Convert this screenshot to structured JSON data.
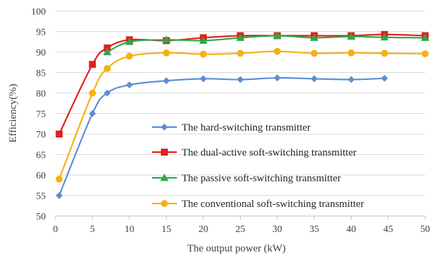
{
  "chart_data": {
    "type": "line",
    "xlabel": "The output power (kW)",
    "ylabel": "Efficiency(%)",
    "xlim": [
      0,
      50
    ],
    "ylim": [
      50,
      100
    ],
    "xticks": [
      "0",
      "5",
      "10",
      "15",
      "20",
      "25",
      "30",
      "35",
      "40",
      "45",
      "50"
    ],
    "yticks": [
      "50",
      "55",
      "60",
      "65",
      "70",
      "75",
      "80",
      "85",
      "90",
      "95",
      "100"
    ],
    "grid": "horizontal",
    "legend_position": "center-right",
    "series": [
      {
        "name": "The hard-switching transmitter",
        "color": "#5B8FD0",
        "marker": "diamond",
        "x": [
          0.5,
          5,
          7,
          10,
          15,
          20,
          25,
          30,
          35,
          40,
          44.5
        ],
        "y": [
          55,
          75,
          80,
          82,
          83,
          83.5,
          83.3,
          83.7,
          83.5,
          83.3,
          83.6
        ]
      },
      {
        "name": "The dual-active soft-switching transmitter",
        "color": "#E0201B",
        "marker": "square",
        "x": [
          0.5,
          5,
          7,
          10,
          15,
          20,
          25,
          30,
          35,
          40,
          44.5,
          50
        ],
        "y": [
          70,
          87,
          91,
          93,
          92.8,
          93.5,
          94,
          94,
          94,
          94,
          94.3,
          94
        ]
      },
      {
        "name": "The passive soft-switching transmitter",
        "color": "#2BA84A",
        "marker": "triangle",
        "x": [
          7,
          10,
          15,
          20,
          25,
          30,
          35,
          40,
          44.5,
          50
        ],
        "y": [
          90,
          92.5,
          93,
          92.8,
          93.5,
          94,
          93.5,
          93.8,
          93.6,
          93.5
        ]
      },
      {
        "name": "The conventional soft-switching transmitter",
        "color": "#F5B114",
        "marker": "circle",
        "x": [
          0.5,
          5,
          7,
          10,
          15,
          20,
          25,
          30,
          35,
          40,
          44.5,
          50
        ],
        "y": [
          59,
          80,
          86,
          89,
          89.8,
          89.5,
          89.7,
          90.2,
          89.7,
          89.8,
          89.7,
          89.6
        ]
      }
    ]
  }
}
